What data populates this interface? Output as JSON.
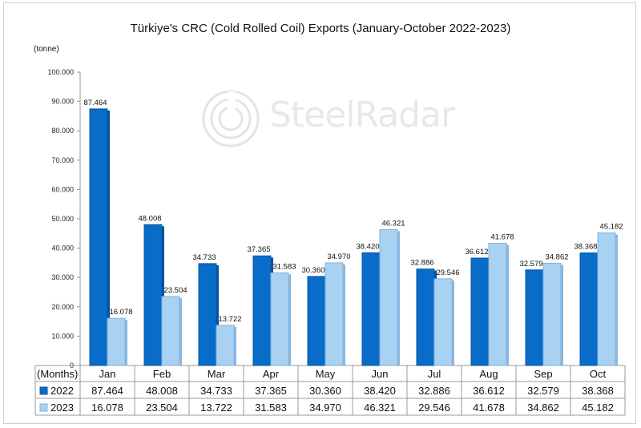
{
  "chart_data": {
    "type": "bar",
    "title": "Türkiye's CRC (Cold Rolled Coil) Exports (January-October 2022-2023)",
    "unit": "(tonne)",
    "x_header": "(Months)",
    "categories": [
      "Jan",
      "Feb",
      "Mar",
      "Apr",
      "May",
      "Jun",
      "Jul",
      "Aug",
      "Sep",
      "Oct"
    ],
    "series": [
      {
        "name": "2022",
        "color": "#0a6cc9",
        "values": [
          87464,
          48008,
          34733,
          37365,
          30360,
          38420,
          32886,
          36612,
          32579,
          38368
        ],
        "labels": [
          "87.464",
          "48.008",
          "34.733",
          "37.365",
          "30.360",
          "38.420",
          "32.886",
          "36.612",
          "32.579",
          "38.368"
        ]
      },
      {
        "name": "2023",
        "color": "#a9d1f2",
        "values": [
          16078,
          23504,
          13722,
          31583,
          34970,
          46321,
          29546,
          41678,
          34862,
          45182
        ],
        "labels": [
          "16.078",
          "23.504",
          "13.722",
          "31.583",
          "34.970",
          "46.321",
          "29.546",
          "41.678",
          "34.862",
          "45.182"
        ]
      }
    ],
    "ylim": [
      0,
      100000
    ],
    "yticks": [
      0,
      10000,
      20000,
      30000,
      40000,
      50000,
      60000,
      70000,
      80000,
      90000,
      100000
    ],
    "ytick_labels": [
      "0",
      "10.000",
      "20.000",
      "30.000",
      "40.000",
      "50.000",
      "60.000",
      "70.000",
      "80.000",
      "90.000",
      "100.000"
    ],
    "legend": "data-table below x-axis",
    "grid": false
  },
  "watermark": {
    "text": "SteelRadar"
  }
}
